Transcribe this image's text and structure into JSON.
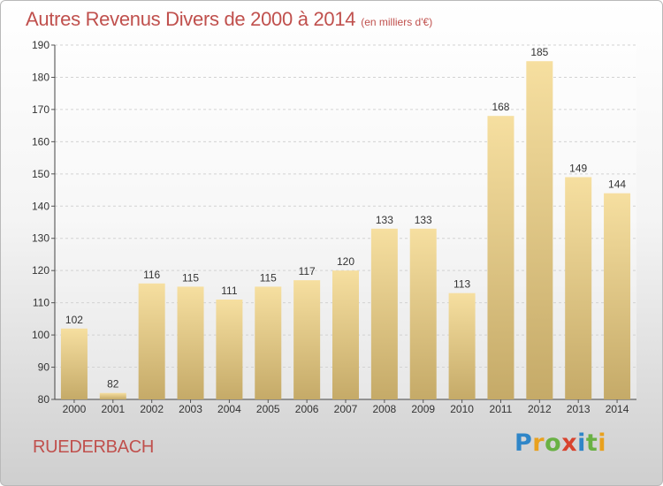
{
  "header": {
    "title": "Autres Revenus Divers de 2000 à 2014",
    "subtitle": "(en milliers d'€)"
  },
  "footer": {
    "commune": "RUEDERBACH",
    "logo_text": "Proxiti"
  },
  "colors": {
    "title": "#c0504d",
    "bar_light": "#f6dfa0",
    "bar_dark": "#c5aa68",
    "logo_letters": [
      "#2f86c8",
      "#e9a11e",
      "#69b144",
      "#d8432e",
      "#2f86c8",
      "#69b144",
      "#e9a11e"
    ]
  },
  "chart_data": {
    "type": "bar",
    "categories": [
      "2000",
      "2001",
      "2002",
      "2003",
      "2004",
      "2005",
      "2006",
      "2007",
      "2008",
      "2009",
      "2010",
      "2011",
      "2012",
      "2013",
      "2014"
    ],
    "values": [
      102,
      82,
      116,
      115,
      111,
      115,
      117,
      120,
      133,
      133,
      113,
      168,
      185,
      149,
      144
    ],
    "ylim": [
      80,
      190
    ],
    "yticks": [
      80,
      90,
      100,
      110,
      120,
      130,
      140,
      150,
      160,
      170,
      180,
      190
    ],
    "grid": true
  }
}
